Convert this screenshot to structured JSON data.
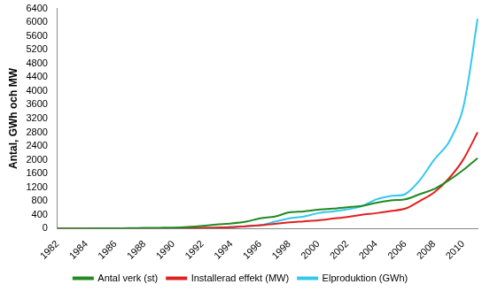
{
  "chart_data": {
    "type": "line",
    "y_label": "Antal, GWh och MW",
    "categories": [
      "1982",
      null,
      "1984",
      null,
      "1986",
      null,
      "1988",
      null,
      "1990",
      null,
      "1992",
      null,
      "1994",
      null,
      "1996",
      null,
      "1998",
      null,
      "2000",
      null,
      "2002",
      null,
      "2004",
      null,
      "2006",
      null,
      "2008",
      null,
      "2010",
      null
    ],
    "series": [
      {
        "name": "Antal verk (st)",
        "color": "#218a21",
        "marker": "none",
        "line_style": "solid",
        "values": [
          0,
          2,
          5,
          8,
          10,
          15,
          20,
          25,
          30,
          50,
          80,
          120,
          150,
          200,
          300,
          350,
          470,
          500,
          550,
          580,
          620,
          660,
          750,
          820,
          850,
          1000,
          1150,
          1400,
          1700,
          2050
        ]
      },
      {
        "name": "Installerad effekt (MW)",
        "color": "#e02020",
        "marker": "none",
        "line_style": "solid",
        "values": [
          0,
          0,
          0,
          1,
          1,
          2,
          3,
          4,
          5,
          10,
          20,
          30,
          40,
          70,
          100,
          140,
          180,
          210,
          240,
          290,
          340,
          400,
          450,
          510,
          580,
          800,
          1050,
          1450,
          2000,
          2800
        ]
      },
      {
        "name": "Elproduktion (GWh)",
        "color": "#33c8ee",
        "marker": "none",
        "line_style": "solid",
        "values": [
          0,
          0,
          0,
          1,
          1,
          2,
          3,
          5,
          6,
          10,
          20,
          30,
          50,
          70,
          100,
          200,
          300,
          350,
          450,
          500,
          560,
          650,
          850,
          950,
          1000,
          1400,
          2000,
          2500,
          3500,
          6100
        ]
      }
    ],
    "ylim": [
      0,
      6400
    ],
    "yticks": [
      0,
      400,
      800,
      1200,
      1600,
      2000,
      2400,
      2800,
      3200,
      3600,
      4000,
      4400,
      4800,
      5200,
      5600,
      6000,
      6400
    ],
    "grid": false,
    "legend": "bottom"
  }
}
